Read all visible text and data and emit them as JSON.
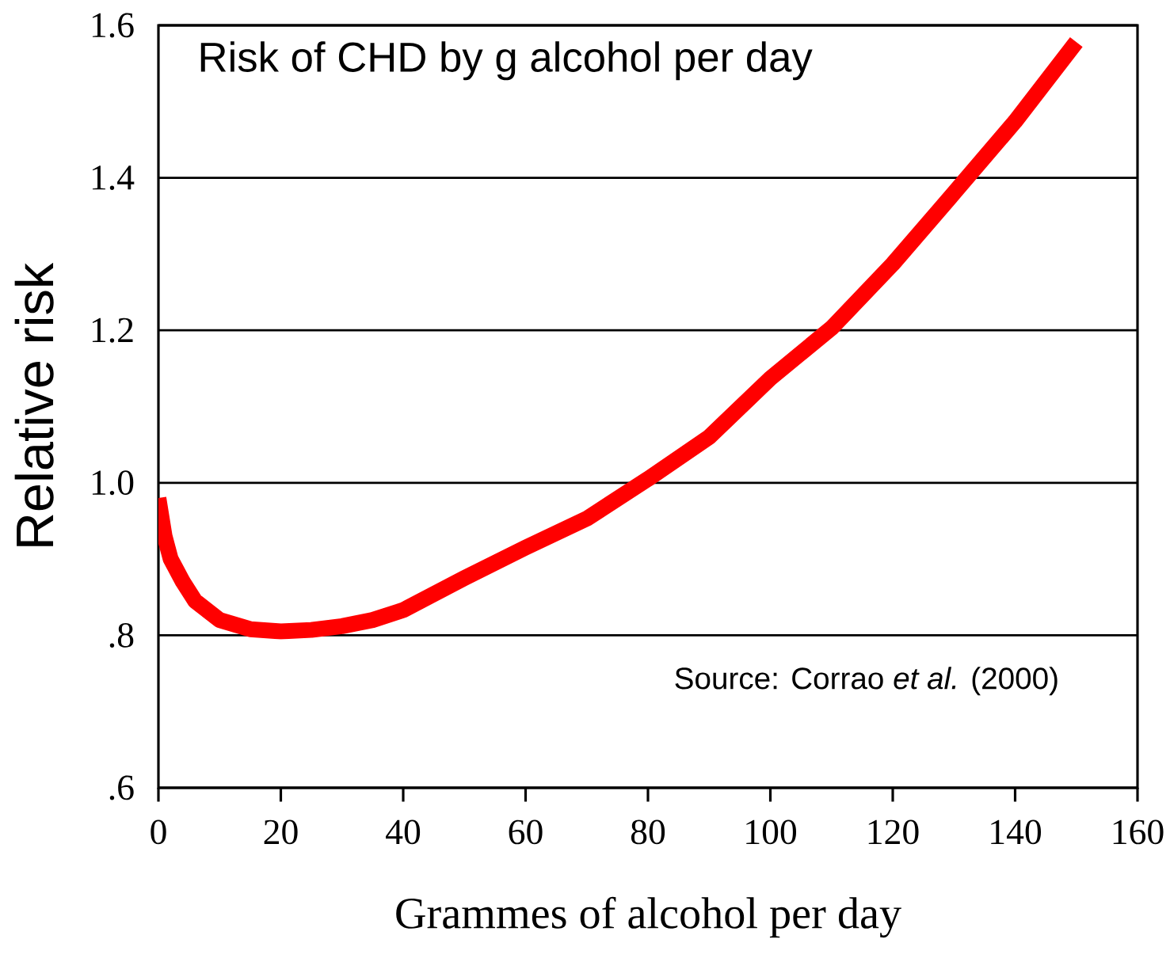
{
  "chart_data": {
    "type": "line",
    "title": "Risk of CHD by g alcohol per day",
    "xlabel": "Grammes of alcohol per day",
    "ylabel": "Relative risk",
    "annotations": [
      "Source: Corrao *et al.* (2000)"
    ],
    "x": [
      0,
      1,
      2,
      4,
      6,
      10,
      15,
      20,
      25,
      30,
      35,
      40,
      50,
      60,
      70,
      80,
      90,
      100,
      110,
      120,
      130,
      140,
      150
    ],
    "series": [
      {
        "color": "#ff0000",
        "values": [
          0.98,
          0.93,
          0.9,
          0.87,
          0.845,
          0.82,
          0.808,
          0.805,
          0.807,
          0.812,
          0.82,
          0.833,
          0.875,
          0.915,
          0.953,
          1.005,
          1.06,
          1.137,
          1.203,
          1.287,
          1.38,
          1.474,
          1.578
        ]
      }
    ],
    "xlim": [
      0,
      160
    ],
    "ylim": [
      0.6,
      1.6
    ],
    "xticks": [
      0,
      20,
      40,
      60,
      80,
      100,
      120,
      140,
      160
    ],
    "yticks": [
      {
        "value": 0.6,
        "label": ".6"
      },
      {
        "value": 0.8,
        "label": ".8"
      },
      {
        "value": 1,
        "label": "1.0"
      },
      1.2,
      1.4,
      1.6
    ],
    "grid": "y",
    "line_style": "solid"
  }
}
